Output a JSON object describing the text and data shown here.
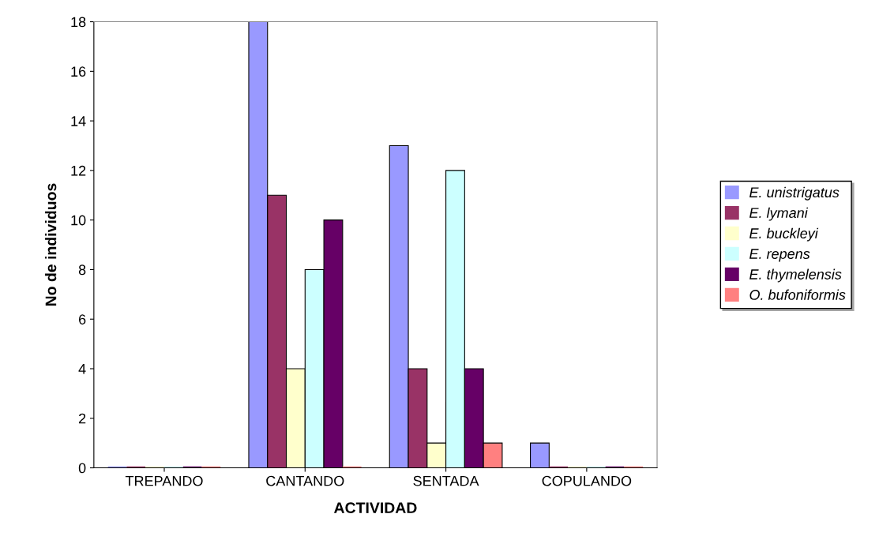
{
  "chart_data": {
    "type": "bar",
    "xlabel": "ACTIVIDAD",
    "ylabel": "No de individuos",
    "categories": [
      "TREPANDO",
      "CANTANDO",
      "SENTADA",
      "COPULANDO"
    ],
    "series": [
      {
        "name": "E. unistrigatus",
        "color": "#9999ff",
        "values": [
          0,
          18,
          13,
          1
        ]
      },
      {
        "name": "E. lymani",
        "color": "#993366",
        "values": [
          0,
          11,
          4,
          0
        ]
      },
      {
        "name": "E. buckleyi",
        "color": "#ffffcc",
        "values": [
          0,
          4,
          1,
          0
        ]
      },
      {
        "name": "E. repens",
        "color": "#ccffff",
        "values": [
          0,
          8,
          12,
          0
        ]
      },
      {
        "name": "E. thymelensis",
        "color": "#660066",
        "values": [
          0,
          10,
          4,
          0
        ]
      },
      {
        "name": "O. bufoniformis",
        "color": "#ff8080",
        "values": [
          0,
          0,
          1,
          0
        ]
      }
    ],
    "ylim": [
      0,
      18
    ],
    "yticks": [
      0,
      2,
      4,
      6,
      8,
      10,
      12,
      14,
      16,
      18
    ],
    "grid": false,
    "legend": "right"
  }
}
